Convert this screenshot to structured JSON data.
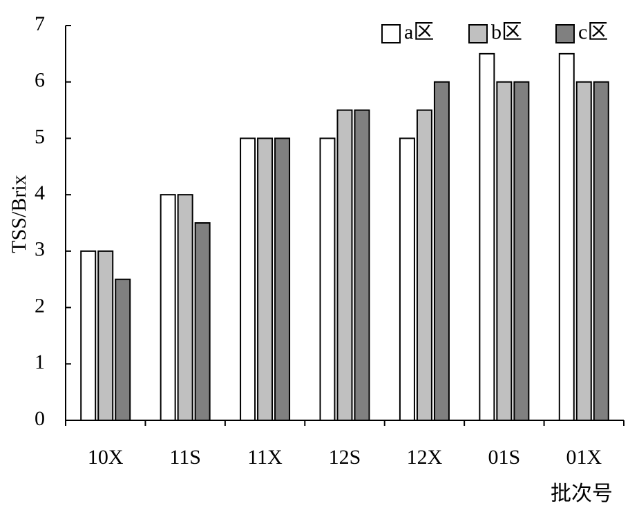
{
  "chart_data": {
    "type": "bar",
    "y_label": "TSS/Brix",
    "x_label": "批次号",
    "categories": [
      "10X",
      "11S",
      "11X",
      "12S",
      "12X",
      "01S",
      "01X"
    ],
    "series": [
      {
        "name": "a区",
        "color": "#ffffff",
        "values": [
          3,
          4,
          5,
          5,
          5,
          6.5,
          6.5
        ]
      },
      {
        "name": "b区",
        "color": "#c0c0c0",
        "values": [
          3,
          4,
          5,
          5.5,
          5.5,
          6,
          6
        ]
      },
      {
        "name": "c区",
        "color": "#808080",
        "values": [
          2.5,
          3.5,
          5,
          5.5,
          6,
          6,
          6
        ]
      }
    ],
    "ylim": [
      0,
      7
    ],
    "yticks": [
      0,
      1,
      2,
      3,
      4,
      5,
      6,
      7
    ],
    "grid": false,
    "legend": "top-right"
  }
}
